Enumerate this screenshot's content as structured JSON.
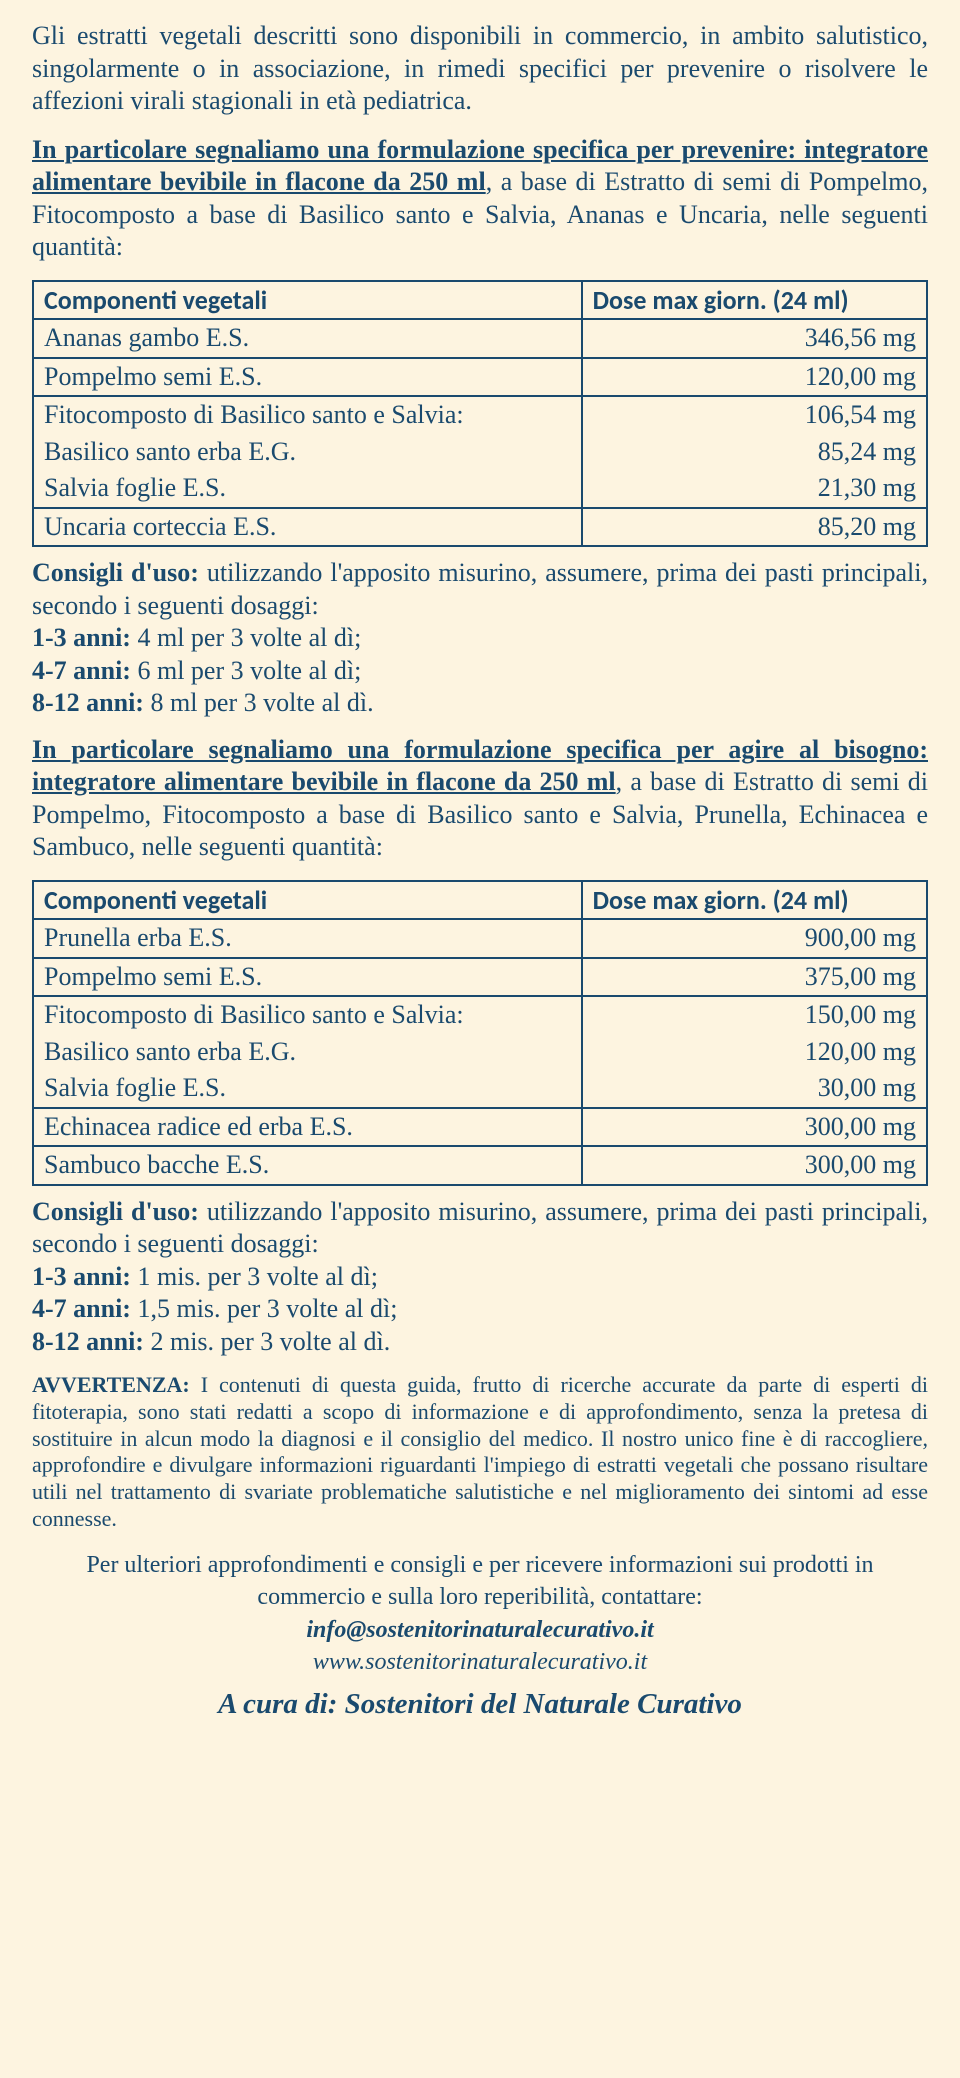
{
  "p_intro": "Gli estratti vegetali descritti sono disponibili in commercio, in ambito salutistico, singolarmente o in associazione, in rimedi specifici per prevenire o risolvere le affezioni virali stagionali in età pediatrica.",
  "p_form1_a": "In particolare segnaliamo una formulazione specifica per prevenire: integratore alimentare bevibile in flacone da 250 ml",
  "p_form1_b": ", a base di Estratto di semi di Pompelmo, Fitocomposto a base di Basilico santo e Salvia, Ananas e Uncaria, nelle seguenti quantità:",
  "table1": {
    "h1": "Componenti vegetali",
    "h2": "Dose max giorn. (24 ml)",
    "rows": [
      {
        "c": "Ananas gambo E.S.",
        "v": "346,56 mg"
      },
      {
        "c": "Pompelmo semi E.S.",
        "v": "120,00 mg"
      },
      {
        "c": "Fitocomposto di Basilico santo e Salvia:",
        "v": "106,54 mg"
      },
      {
        "c": "Basilico santo erba E.G.",
        "v": "85,24 mg"
      },
      {
        "c": "Salvia foglie E.S.",
        "v": "21,30 mg"
      },
      {
        "c": "Uncaria corteccia E.S.",
        "v": "85,20 mg"
      }
    ]
  },
  "usage1": {
    "head_b": "Consigli d'uso: ",
    "head_t": "utilizzando l'apposito misurino, assumere, prima dei pasti principali, secondo i seguenti dosaggi:",
    "l1b": "1-3 anni:",
    "l1": " 4 ml per 3 volte al dì;",
    "l2b": "4-7 anni:",
    "l2": " 6 ml per 3 volte al dì;",
    "l3b": "8-12 anni:",
    "l3": " 8 ml per 3 volte al dì."
  },
  "p_form2_a": "In particolare segnaliamo una formulazione specifica per agire al bisogno: integratore alimentare bevibile in flacone da 250 ml",
  "p_form2_b": ", a base di Estratto di semi di Pompelmo, Fitocomposto a base di Basilico santo e Salvia, Prunella, Echinacea e Sambuco, nelle seguenti quantità:",
  "table2": {
    "h1": "Componenti vegetali",
    "h2": "Dose max giorn. (24 ml)",
    "rows": [
      {
        "c": "Prunella erba E.S.",
        "v": "900,00 mg"
      },
      {
        "c": "Pompelmo semi E.S.",
        "v": "375,00 mg"
      },
      {
        "c": "Fitocomposto di Basilico santo e Salvia:",
        "v": "150,00 mg"
      },
      {
        "c": "Basilico santo erba E.G.",
        "v": "120,00 mg"
      },
      {
        "c": "Salvia foglie E.S.",
        "v": "30,00 mg"
      },
      {
        "c": "Echinacea radice ed erba E.S.",
        "v": "300,00 mg"
      },
      {
        "c": "Sambuco bacche E.S.",
        "v": "300,00 mg"
      }
    ]
  },
  "usage2": {
    "head_b": "Consigli d'uso: ",
    "head_t": "utilizzando l'apposito misurino, assumere, prima dei pasti principali, secondo i seguenti dosaggi:",
    "l1b": "1-3 anni:",
    "l1": " 1 mis. per 3 volte al dì;",
    "l2b": "4-7 anni:",
    "l2": " 1,5 mis. per 3 volte al dì;",
    "l3b": "8-12 anni:",
    "l3": " 2 mis. per 3 volte al dì."
  },
  "warn_b": "AVVERTENZA:",
  "warn_t": " I contenuti di questa guida, frutto di ricerche accurate da parte di esperti di fitoterapia, sono stati redatti a scopo di informazione e di approfondimento, senza la pretesa di sostituire in alcun modo la diagnosi e il consiglio del medico. Il nostro unico fine è di raccogliere, approfondire e divulgare informazioni riguardanti l'impiego di estratti vegetali che possano risultare utili nel trattamento di svariate problematiche salutistiche e nel miglioramento dei sintomi ad esse connesse.",
  "footer": {
    "line1": "Per ulteriori approfondimenti e consigli e per ricevere informazioni sui prodotti in commercio e sulla loro reperibilità, contattare:",
    "email": "info@sostenitorinaturalecurativo.it",
    "site": "www.sostenitorinaturalecurativo.it",
    "credit": "A cura di: Sostenitori del Naturale Curativo"
  }
}
